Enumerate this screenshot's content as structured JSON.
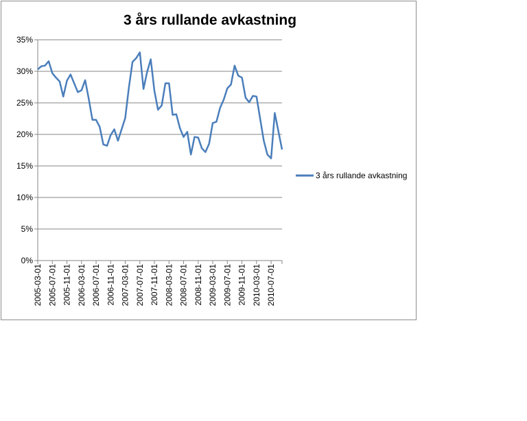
{
  "chart_data": {
    "type": "line",
    "title": "3 års rullande avkastning",
    "xlabel": "",
    "ylabel": "",
    "ylim": [
      0,
      35
    ],
    "y_ticks": [
      "0%",
      "5%",
      "10%",
      "15%",
      "20%",
      "25%",
      "30%",
      "35%"
    ],
    "y_tick_values": [
      0,
      5,
      10,
      15,
      20,
      25,
      30,
      35
    ],
    "x_tick_labels": [
      "2005-03-01",
      "2005-07-01",
      "2005-11-01",
      "2006-03-01",
      "2006-07-01",
      "2006-11-01",
      "2007-03-01",
      "2007-07-01",
      "2007-11-01",
      "2008-03-01",
      "2008-07-01",
      "2008-11-01",
      "2009-03-01",
      "2009-07-01",
      "2009-11-01",
      "2010-03-01",
      "2010-07-01"
    ],
    "grid": "horizontal",
    "legend": "right",
    "line_color": "#4a7ebb",
    "series": [
      {
        "name": "3 års rullande avkastning",
        "values": [
          30.3,
          30.8,
          30.9,
          31.6,
          29.7,
          29.0,
          28.4,
          26.0,
          28.5,
          29.5,
          28.1,
          26.7,
          27.0,
          28.6,
          25.6,
          22.3,
          22.3,
          21.2,
          18.4,
          18.2,
          19.9,
          20.8,
          19.0,
          20.8,
          22.6,
          27.4,
          31.5,
          32.1,
          33.0,
          27.2,
          29.9,
          31.9,
          26.9,
          23.9,
          24.6,
          28.1,
          28.1,
          23.1,
          23.2,
          21.0,
          19.6,
          20.4,
          16.8,
          19.6,
          19.5,
          17.8,
          17.2,
          18.5,
          21.8,
          22.0,
          24.2,
          25.5,
          27.3,
          27.9,
          30.9,
          29.3,
          29.0,
          25.8,
          25.1,
          26.1,
          26.0,
          22.5,
          19.0,
          16.8,
          16.2,
          23.4,
          20.5,
          17.6
        ]
      }
    ]
  }
}
